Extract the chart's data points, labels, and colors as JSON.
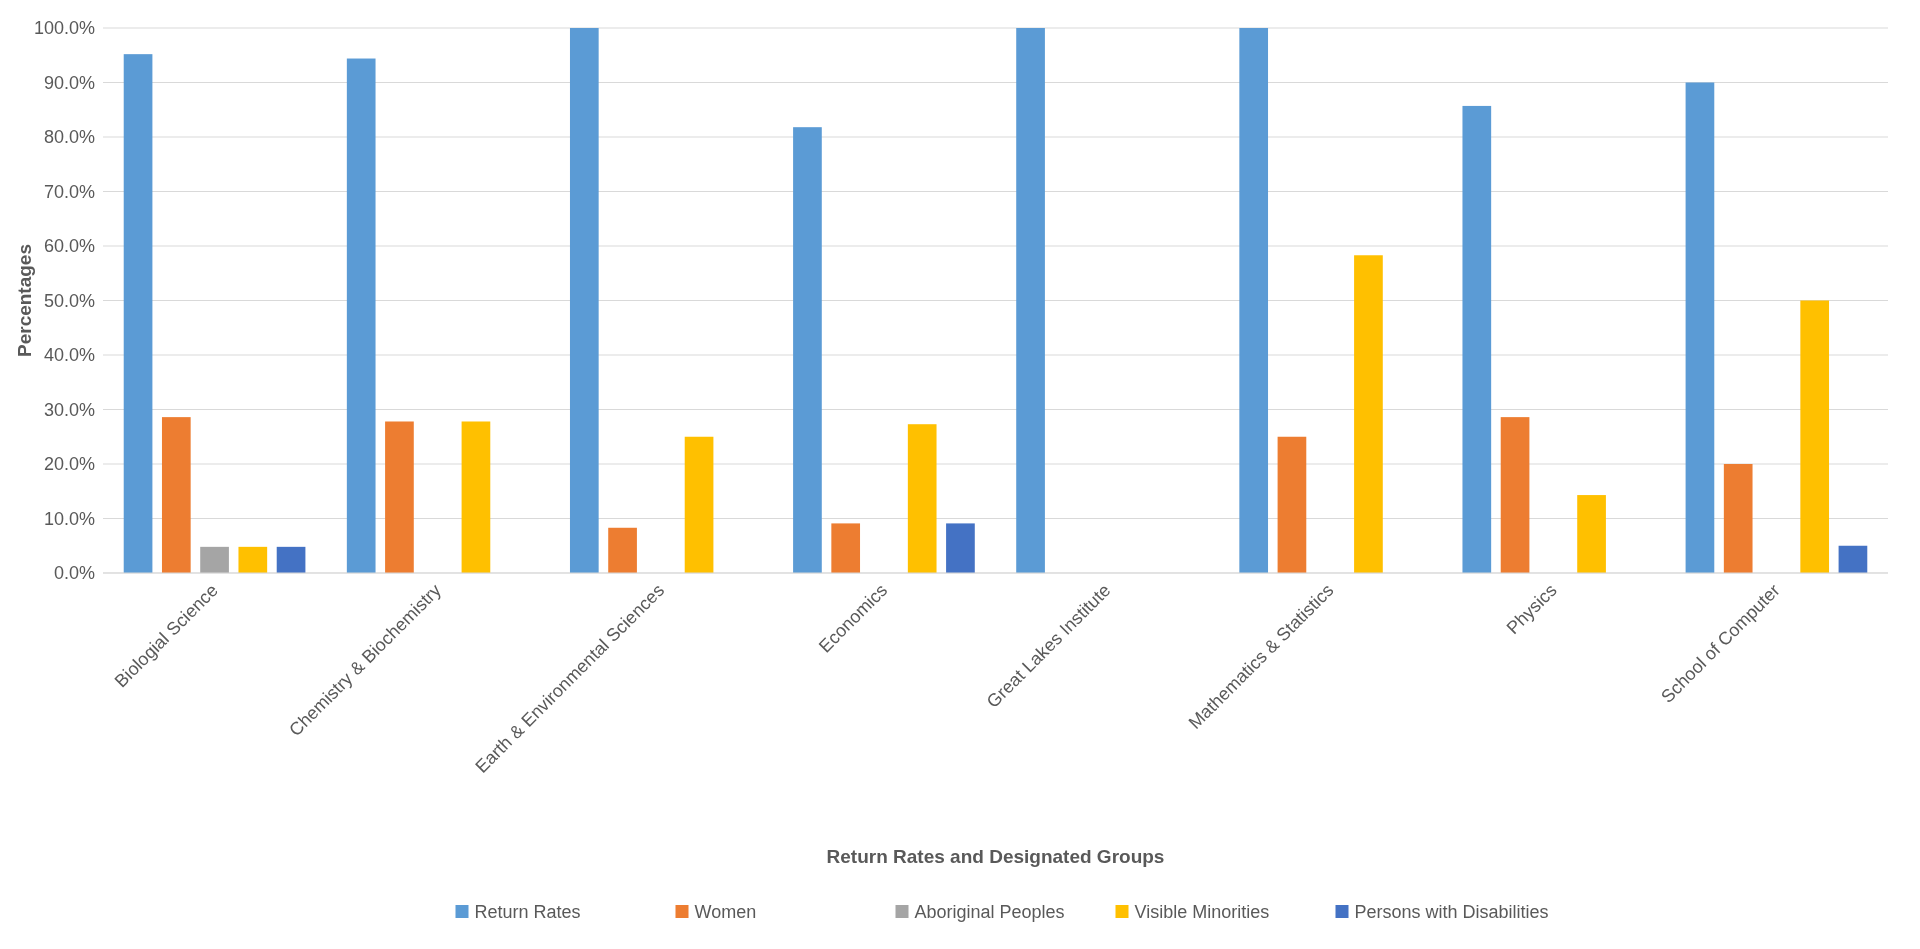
{
  "chart_data": {
    "type": "bar",
    "xlabel": "Return Rates and Designated Groups",
    "ylabel": "Percentages",
    "categories": [
      "Biologial Science",
      "Chemistry & Biochemistry",
      "Earth & Environmental Sciences",
      "Economics",
      "Great Lakes Institute",
      "Mathematics & Statistics",
      "Physics",
      "School of Computer"
    ],
    "series": [
      {
        "name": "Return Rates",
        "color": "#5b9bd5",
        "values": [
          95.2,
          94.4,
          100,
          81.8,
          100,
          100,
          85.7,
          90
        ]
      },
      {
        "name": "Women",
        "color": "#ed7d31",
        "values": [
          28.6,
          27.8,
          8.3,
          9.1,
          0,
          25,
          28.6,
          20
        ]
      },
      {
        "name": "Aboriginal Peoples",
        "color": "#a5a5a5",
        "values": [
          4.8,
          0,
          0,
          0,
          0,
          0,
          0,
          0
        ]
      },
      {
        "name": "Visible Minorities",
        "color": "#ffc000",
        "values": [
          4.8,
          27.8,
          25,
          27.3,
          0,
          58.3,
          14.3,
          50
        ]
      },
      {
        "name": "Persons with Disabilities",
        "color": "#4472c4",
        "values": [
          4.8,
          0,
          0,
          9.1,
          0,
          0,
          0,
          5
        ]
      }
    ],
    "ylim": [
      0,
      100
    ],
    "yticks": [
      {
        "value": 0,
        "label": "0.0%"
      },
      {
        "value": 10,
        "label": "10.0%"
      },
      {
        "value": 20,
        "label": "20.0%"
      },
      {
        "value": 30,
        "label": "30.0%"
      },
      {
        "value": 40,
        "label": "40.0%"
      },
      {
        "value": 50,
        "label": "50.0%"
      },
      {
        "value": 60,
        "label": "60.0%"
      },
      {
        "value": 70,
        "label": "70.0%"
      },
      {
        "value": 80,
        "label": "80.0%"
      },
      {
        "value": 90,
        "label": "90.0%"
      },
      {
        "value": 100,
        "label": "100.0%"
      }
    ],
    "grid": "y",
    "legend": "bottom"
  }
}
